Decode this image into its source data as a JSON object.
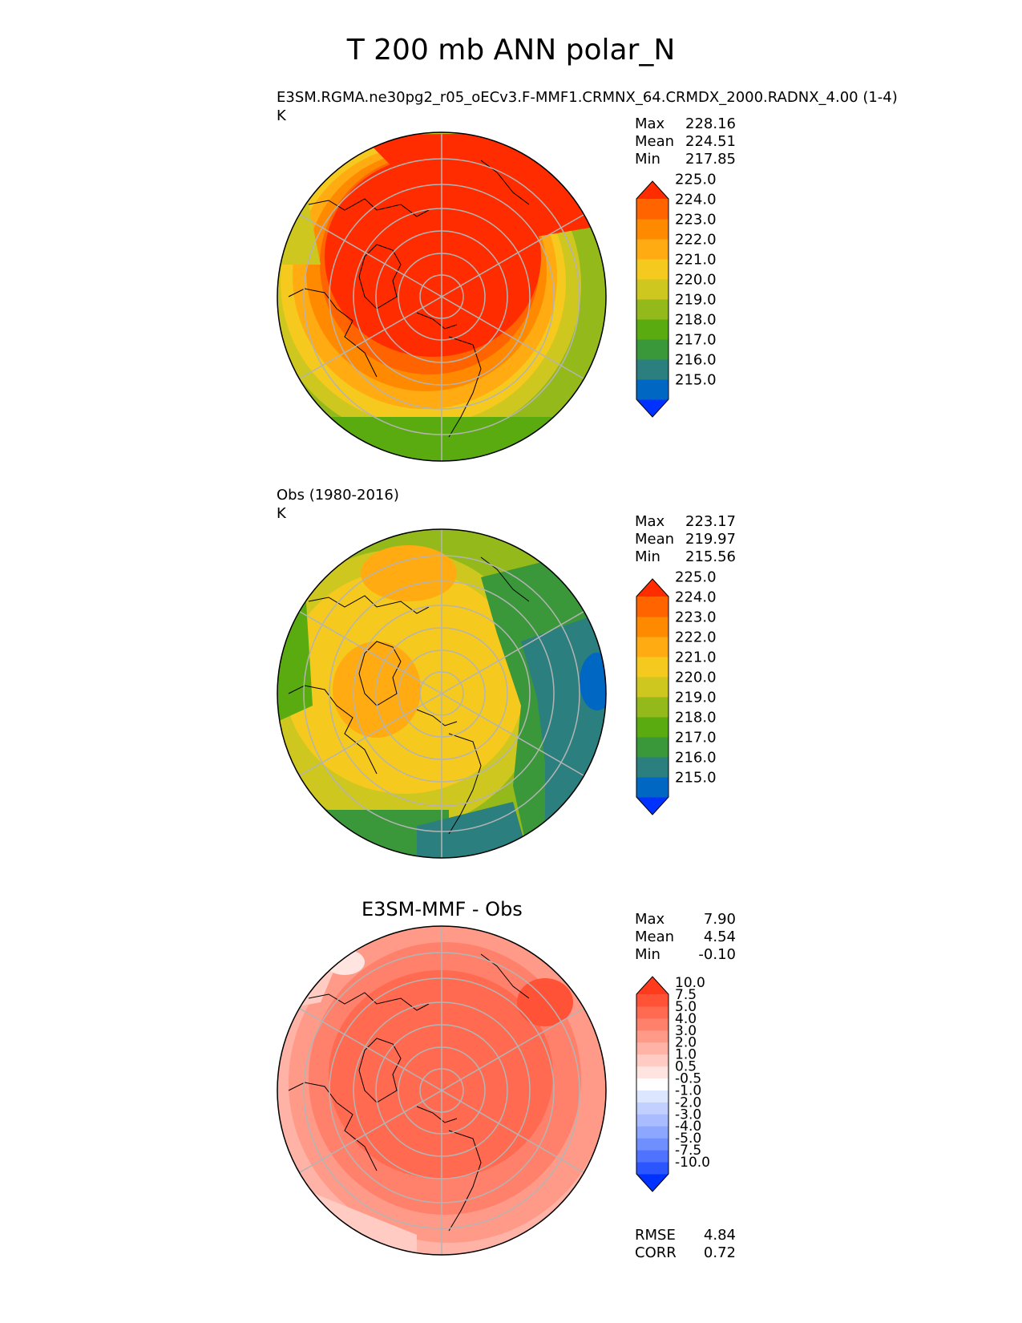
{
  "title": "T 200 mb ANN polar_N",
  "colors": {
    "temp_levels": [
      "#0032ff",
      "#0067c2",
      "#2b7f7f",
      "#3a973a",
      "#5aab10",
      "#94b91a",
      "#cec71f",
      "#f5c91e",
      "#ffab11",
      "#ff8a00",
      "#ff6400",
      "#ff2c00"
    ],
    "temp_ticks": [
      "215.0",
      "216.0",
      "217.0",
      "218.0",
      "219.0",
      "220.0",
      "221.0",
      "222.0",
      "223.0",
      "224.0",
      "225.0"
    ],
    "diff_levels": [
      "#0032ff",
      "#2a55ff",
      "#4f72ff",
      "#6f8fff",
      "#8ca7ff",
      "#a8bcff",
      "#c2d0ff",
      "#dde6ff",
      "#ffffff",
      "#ffe4e0",
      "#ffcbc2",
      "#ffb3a6",
      "#ff9a88",
      "#ff816b",
      "#ff6a50",
      "#ff5236",
      "#ff3a1d"
    ],
    "diff_ticks": [
      "-10.0",
      "-7.5",
      "-5.0",
      "-4.0",
      "-3.0",
      "-2.0",
      "-1.0",
      "-0.5",
      "0.5",
      "1.0",
      "2.0",
      "3.0",
      "4.0",
      "5.0",
      "7.5",
      "10.0"
    ]
  },
  "panels": {
    "test": {
      "title": "E3SM.RGMA.ne30pg2_r05_oECv3.F-MMF1.CRMNX_64.CRMDX_2000.RADNX_4.00 (1-4)",
      "units": "K",
      "stats": [
        {
          "label": "Max",
          "value": "228.16"
        },
        {
          "label": "Mean",
          "value": "224.51"
        },
        {
          "label": "Min",
          "value": "217.85"
        }
      ]
    },
    "ref": {
      "title": "Obs (1980-2016)",
      "units": "K",
      "stats": [
        {
          "label": "Max",
          "value": "223.17"
        },
        {
          "label": "Mean",
          "value": "219.97"
        },
        {
          "label": "Min",
          "value": "215.56"
        }
      ]
    },
    "diff": {
      "title": "E3SM-MMF - Obs",
      "stats": [
        {
          "label": "Max",
          "value": "7.90"
        },
        {
          "label": "Mean",
          "value": "4.54"
        },
        {
          "label": "Min",
          "value": "-0.10"
        }
      ],
      "metrics": [
        {
          "label": "RMSE",
          "value": "4.84"
        },
        {
          "label": "CORR",
          "value": "0.72"
        }
      ]
    }
  },
  "chart_data": [
    {
      "type": "heatmap",
      "projection": "north-polar-stereographic",
      "title": "E3SM.RGMA.ne30pg2_r05_oECv3.F-MMF1.CRMNX_64.CRMDX_2000.RADNX_4.00 (1-4)",
      "units": "K",
      "max": 228.16,
      "mean": 224.51,
      "min": 217.85,
      "colorbar_ticks": [
        215,
        216,
        217,
        218,
        219,
        220,
        221,
        222,
        223,
        224,
        225
      ],
      "extend": "both"
    },
    {
      "type": "heatmap",
      "projection": "north-polar-stereographic",
      "title": "Obs (1980-2016)",
      "units": "K",
      "max": 223.17,
      "mean": 219.97,
      "min": 215.56,
      "colorbar_ticks": [
        215,
        216,
        217,
        218,
        219,
        220,
        221,
        222,
        223,
        224,
        225
      ],
      "extend": "both"
    },
    {
      "type": "heatmap",
      "projection": "north-polar-stereographic",
      "title": "E3SM-MMF - Obs",
      "max": 7.9,
      "mean": 4.54,
      "min": -0.1,
      "rmse": 4.84,
      "corr": 0.72,
      "colorbar_ticks": [
        -10,
        -7.5,
        -5,
        -4,
        -3,
        -2,
        -1,
        -0.5,
        0.5,
        1,
        2,
        3,
        4,
        5,
        7.5,
        10
      ],
      "extend": "both"
    }
  ]
}
